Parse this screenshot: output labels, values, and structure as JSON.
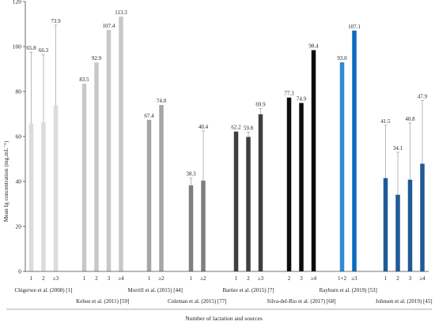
{
  "chart_data": {
    "type": "bar",
    "title": "",
    "xlabel": "Number of lactation and sources",
    "ylabel": "Mean Ig concentration (mg.mL⁻¹)",
    "ylim": [
      0,
      120
    ],
    "yticks": [
      0,
      20,
      40,
      60,
      80,
      100,
      120
    ],
    "grid": false,
    "legend": "none",
    "groups": [
      {
        "source": "Chigerwe et al. (2008) [1]",
        "label_row": "upper",
        "bars": [
          {
            "category": "1",
            "value": 65.8,
            "label": "65.8",
            "error_top": 97.5,
            "color": "#dcdcdc"
          },
          {
            "category": "2",
            "value": 66.3,
            "label": "66.3",
            "error_top": 96.5,
            "color": "#dcdcdc"
          },
          {
            "category": "≥3",
            "value": 73.9,
            "label": "73.9",
            "error_top": 109.5,
            "color": "#dcdcdc"
          }
        ]
      },
      {
        "source": "Kehoe et al. (2011) [59]",
        "label_row": "lower",
        "bars": [
          {
            "category": "1",
            "value": 83.5,
            "label": "83.5",
            "error_top": null,
            "color": "#c8c8c8"
          },
          {
            "category": "2",
            "value": 92.9,
            "label": "92.9",
            "error_top": null,
            "color": "#c8c8c8"
          },
          {
            "category": "3",
            "value": 107.4,
            "label": "107.4",
            "error_top": null,
            "color": "#c8c8c8"
          },
          {
            "category": "≥4",
            "value": 113.3,
            "label": "113.3",
            "error_top": null,
            "color": "#c8c8c8"
          }
        ]
      },
      {
        "source": "Morrill et al. (2015) [44]",
        "label_row": "upper",
        "bars": [
          {
            "category": "1",
            "value": 67.4,
            "label": "67.4",
            "error_top": null,
            "color": "#a6a6a6"
          },
          {
            "category": "≥2",
            "value": 74.0,
            "label": "74.0",
            "error_top": null,
            "color": "#a6a6a6"
          }
        ]
      },
      {
        "source": "Coleman et al. (2015) [77]",
        "label_row": "lower",
        "bars": [
          {
            "category": "1",
            "value": 38.3,
            "label": "38.3",
            "error_top": 41.5,
            "color": "#7f7f7f"
          },
          {
            "category": "≥2",
            "value": 40.4,
            "label": "40.4",
            "error_top": 62.5,
            "color": "#7f7f7f"
          }
        ]
      },
      {
        "source": "Bartier et al. (2015) [7]",
        "label_row": "upper",
        "bars": [
          {
            "category": "1",
            "value": 62.2,
            "label": "62.2",
            "error_top": null,
            "color": "#3f3f3f"
          },
          {
            "category": "2",
            "value": 59.8,
            "label": "59.8",
            "error_top": 62.0,
            "color": "#3f3f3f"
          },
          {
            "category": "≥3",
            "value": 69.9,
            "label": "69.9",
            "error_top": 72.5,
            "color": "#3f3f3f"
          }
        ]
      },
      {
        "source": "Silva-del-Rio et al. (2017) [68]",
        "label_row": "lower",
        "bars": [
          {
            "category": "2",
            "value": 77.3,
            "label": "77.3",
            "error_top": null,
            "color": "#0d0d0d"
          },
          {
            "category": "3",
            "value": 74.9,
            "label": "74.9",
            "error_top": null,
            "color": "#0d0d0d"
          },
          {
            "category": "≥4",
            "value": 98.4,
            "label": "98.4",
            "error_top": null,
            "color": "#0d0d0d"
          }
        ]
      },
      {
        "source": "Rayburn et al. (2019) [53]",
        "label_row": "upper",
        "bars": [
          {
            "category": "1+2",
            "value": 93.0,
            "label": "93.0",
            "error_top": null,
            "color": "#2e8bd6"
          },
          {
            "category": "≥3",
            "value": 107.1,
            "label": "107.1",
            "error_top": null,
            "color": "#0a6cc0"
          }
        ]
      },
      {
        "source": "Johnsen et al. (2019) [45]",
        "label_row": "lower",
        "bars": [
          {
            "category": "1",
            "value": 41.5,
            "label": "41.5",
            "error_top": 65.0,
            "color": "#1f5a96"
          },
          {
            "category": "2",
            "value": 34.1,
            "label": "34.1",
            "error_top": 53.0,
            "color": "#1f5a96"
          },
          {
            "category": "3",
            "value": 40.8,
            "label": "40.8",
            "error_top": 66.0,
            "color": "#1f5a96"
          },
          {
            "category": "≥4",
            "value": 47.9,
            "label": "47.9",
            "error_top": 76.0,
            "color": "#1f5a96"
          }
        ]
      }
    ]
  }
}
